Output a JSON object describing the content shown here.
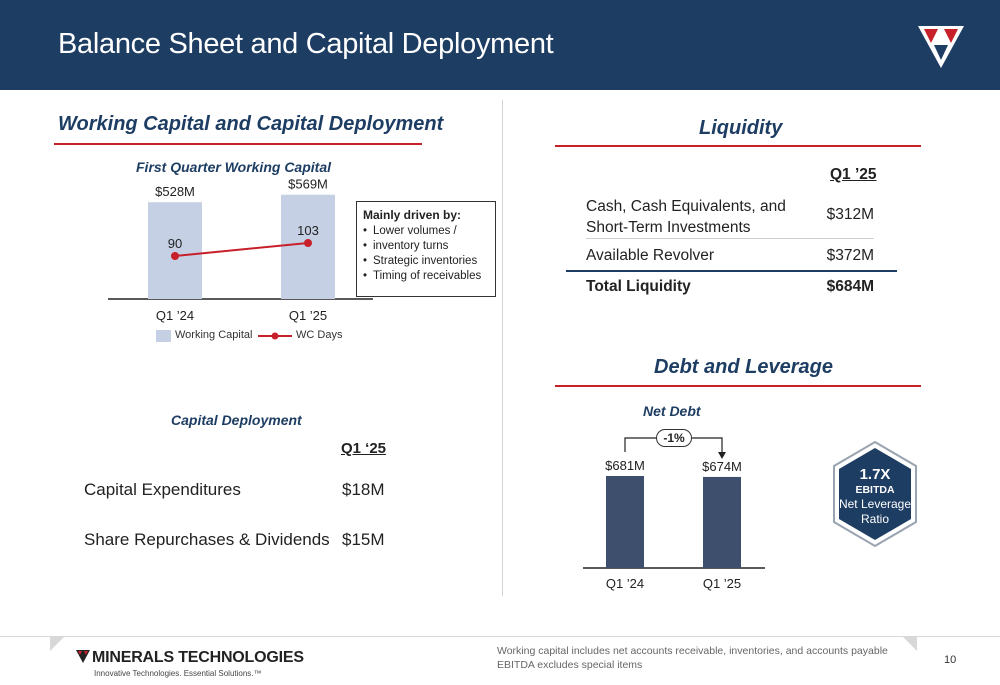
{
  "header": {
    "title": "Balance Sheet and Capital Deployment",
    "logo_icon": "mti-logo-icon",
    "bg_color": "#1e3d63"
  },
  "working_capital": {
    "section_title": "Working Capital and Capital Deployment",
    "chart_title": "First Quarter Working Capital",
    "callout": {
      "title": "Mainly driven by:",
      "bullets": [
        "Lower volumes /",
        "inventory turns",
        "Strategic inventories",
        "Timing of receivables"
      ]
    },
    "legend": {
      "bar_label": "Working Capital",
      "line_label": "WC Days"
    }
  },
  "capital_deployment": {
    "title": "Capital Deployment",
    "column_header": "Q1 ‘25",
    "rows": [
      {
        "label": "Capital Expenditures",
        "value": "$18M"
      },
      {
        "label": "Share Repurchases & Dividends",
        "value": "$15M"
      }
    ]
  },
  "liquidity": {
    "section_title": "Liquidity",
    "column_header": "Q1 ’25",
    "rows": [
      {
        "label_line1": "Cash, Cash Equivalents, and",
        "label_line2": "Short-Term Investments",
        "value": "$312M"
      },
      {
        "label": "Available Revolver",
        "value": "$372M"
      },
      {
        "label": "Total Liquidity",
        "value": "$684M"
      }
    ]
  },
  "debt": {
    "section_title": "Debt and Leverage",
    "chart_title": "Net Debt",
    "change_label": "-1%",
    "leverage": {
      "value": "1.7X",
      "line1": "EBITDA",
      "line2": "Net Leverage",
      "line3": "Ratio"
    }
  },
  "footer": {
    "brand": "MINERALS TECHNOLOGIES",
    "tagline": "Innovative Technologies. Essential Solutions.™",
    "notes": [
      "Working capital includes net accounts receivable, inventories, and accounts payable",
      "EBITDA excludes special items"
    ],
    "page_number": "10",
    "brand_icon": "mti-small-logo-icon"
  },
  "chart_data": [
    {
      "type": "bar",
      "title": "First Quarter Working Capital",
      "categories": [
        "Q1 ’24",
        "Q1 ’25"
      ],
      "series": [
        {
          "name": "Working Capital",
          "type": "bar",
          "values": [
            528,
            569
          ],
          "labels": [
            "$528M",
            "$569M"
          ],
          "color": "#c5d0e4"
        },
        {
          "name": "WC Days",
          "type": "line",
          "values": [
            90,
            103
          ],
          "labels": [
            "90",
            "103"
          ],
          "color": "#c8202a"
        }
      ],
      "legend": "bottom"
    },
    {
      "type": "bar",
      "title": "Net Debt",
      "categories": [
        "Q1 ’24",
        "Q1 ’25"
      ],
      "values": [
        681,
        674
      ],
      "labels": [
        "$681M",
        "$674M"
      ],
      "color": "#3d4f6d"
    }
  ]
}
